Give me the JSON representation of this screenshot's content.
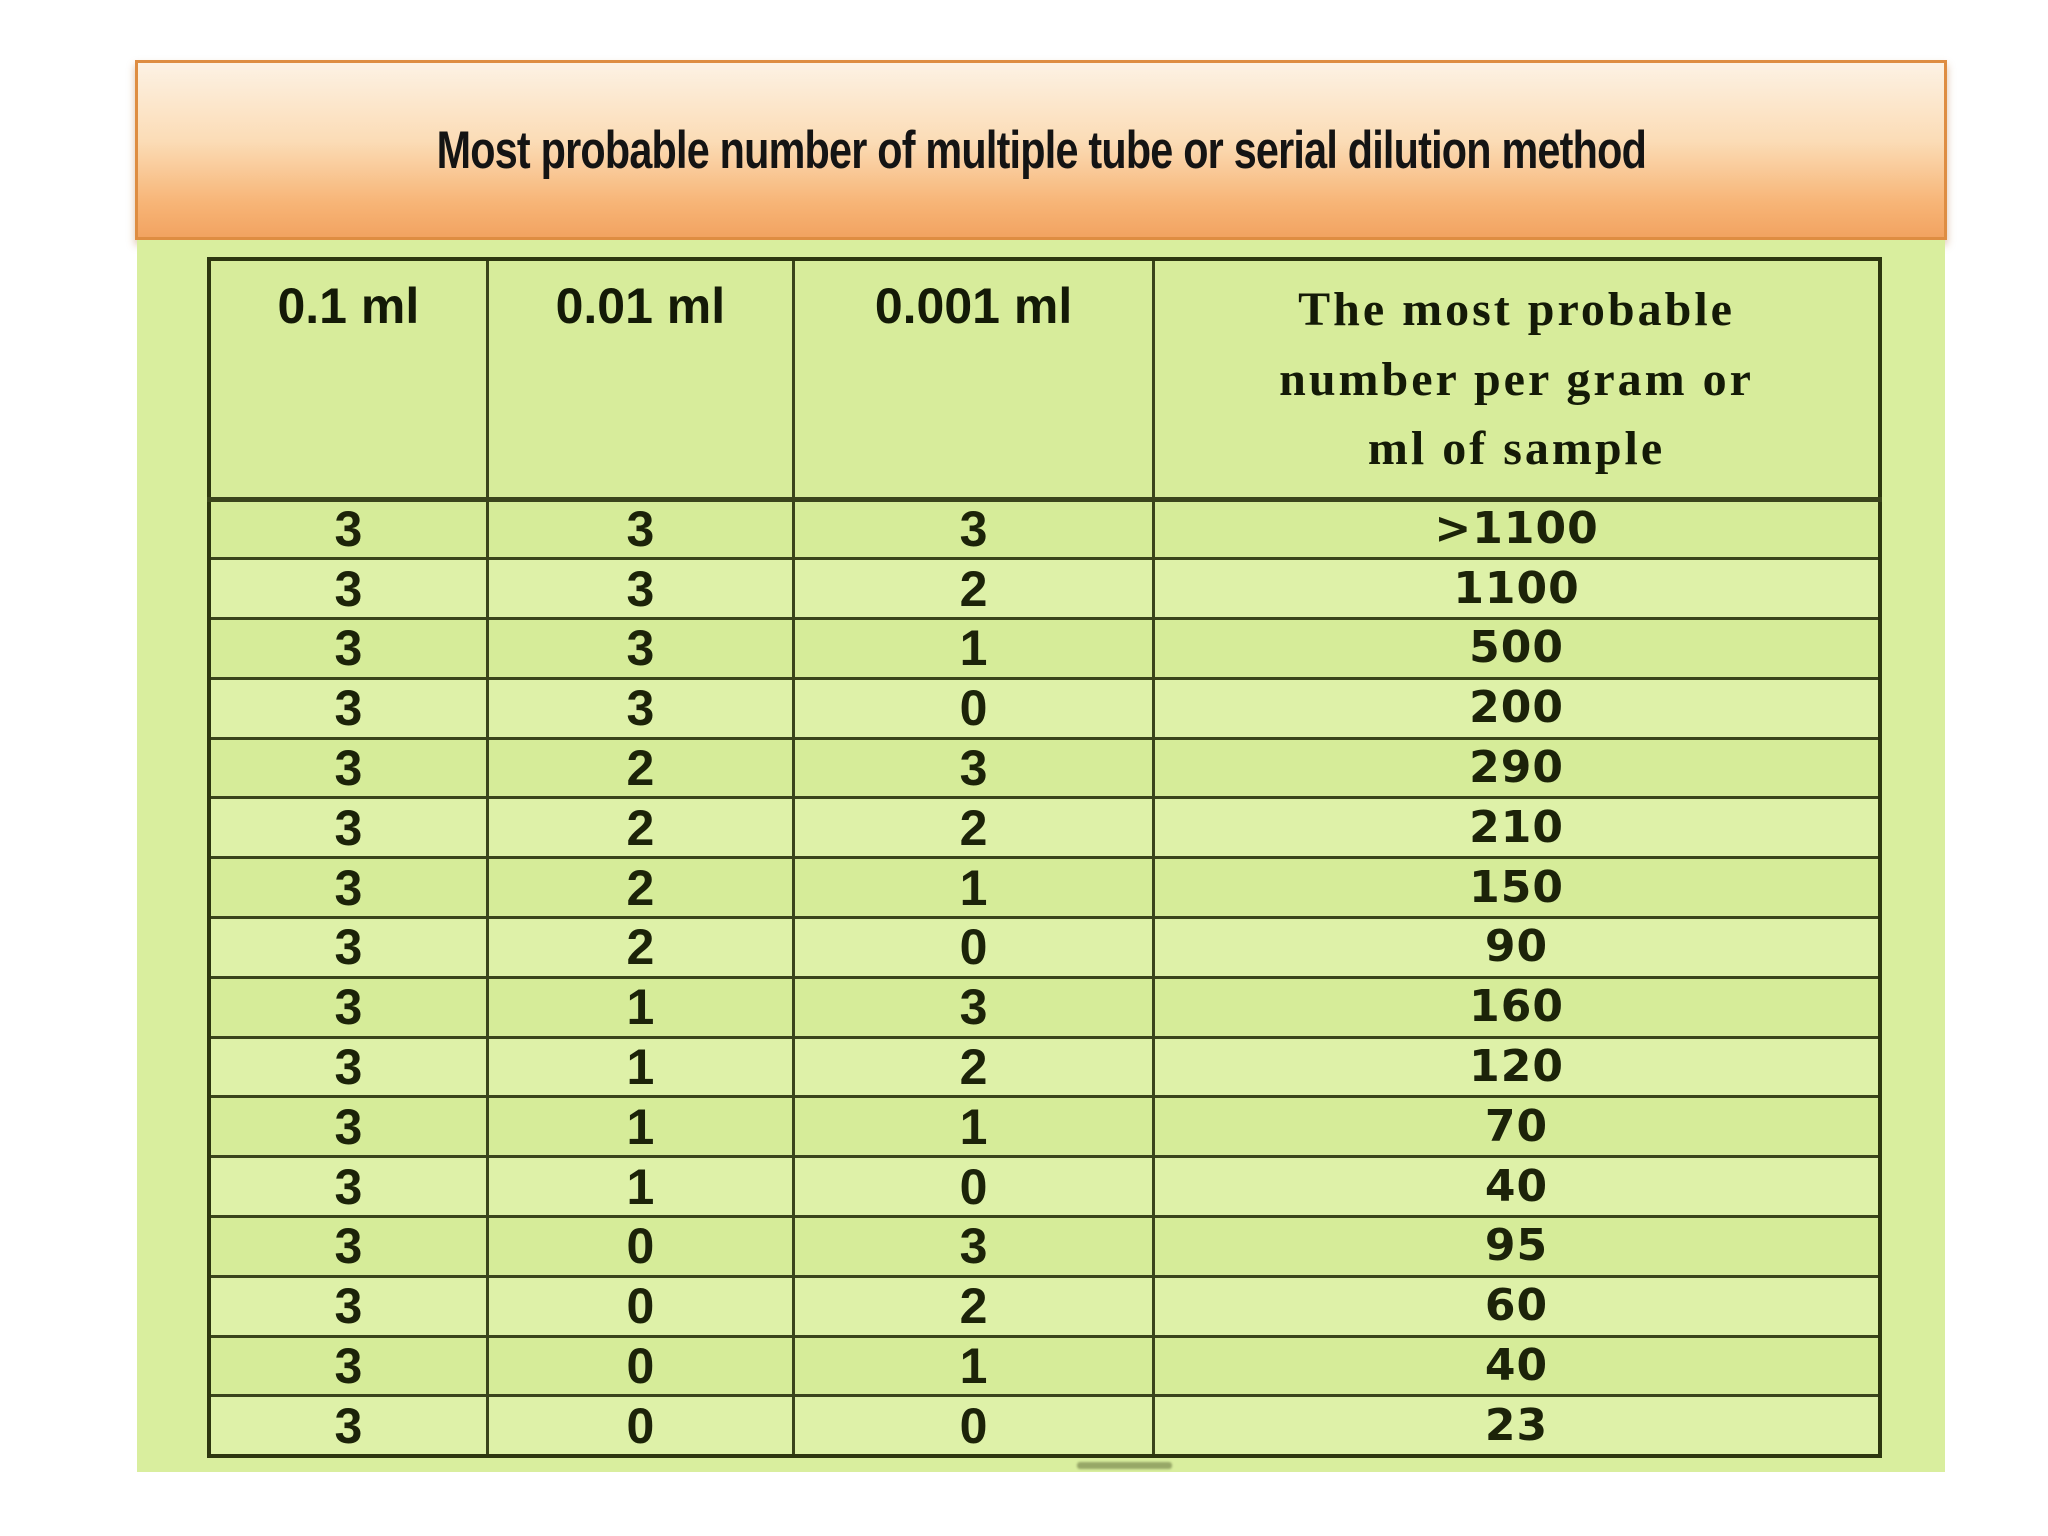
{
  "slide": {
    "title": "Most probable number of multiple tube or serial dilution method"
  },
  "table": {
    "columns": [
      "0.1 ml",
      "0.01 ml",
      "0.001 ml",
      "The most probable number per gram or ml of sample"
    ],
    "rows": [
      [
        "3",
        "3",
        "3",
        ">1100"
      ],
      [
        "3",
        "3",
        "2",
        "1100"
      ],
      [
        "3",
        "3",
        "1",
        "500"
      ],
      [
        "3",
        "3",
        "0",
        "200"
      ],
      [
        "3",
        "2",
        "3",
        "290"
      ],
      [
        "3",
        "2",
        "2",
        "210"
      ],
      [
        "3",
        "2",
        "1",
        "150"
      ],
      [
        "3",
        "2",
        "0",
        "90"
      ],
      [
        "3",
        "1",
        "3",
        "160"
      ],
      [
        "3",
        "1",
        "2",
        "120"
      ],
      [
        "3",
        "1",
        "1",
        "70"
      ],
      [
        "3",
        "1",
        "0",
        "40"
      ],
      [
        "3",
        "0",
        "3",
        "95"
      ],
      [
        "3",
        "0",
        "2",
        "60"
      ],
      [
        "3",
        "0",
        "1",
        "40"
      ],
      [
        "3",
        "0",
        "0",
        "23"
      ]
    ]
  },
  "colors": {
    "banner_gradient_top": "#fdf2e4",
    "banner_gradient_bottom": "#f2a361",
    "banner_border": "#de8d42",
    "panel_green": "#d9ee9e",
    "cell_green": "#d6ec99",
    "cell_green_light": "#def1a8",
    "table_border": "#3a441b",
    "text": "#1c2309"
  }
}
